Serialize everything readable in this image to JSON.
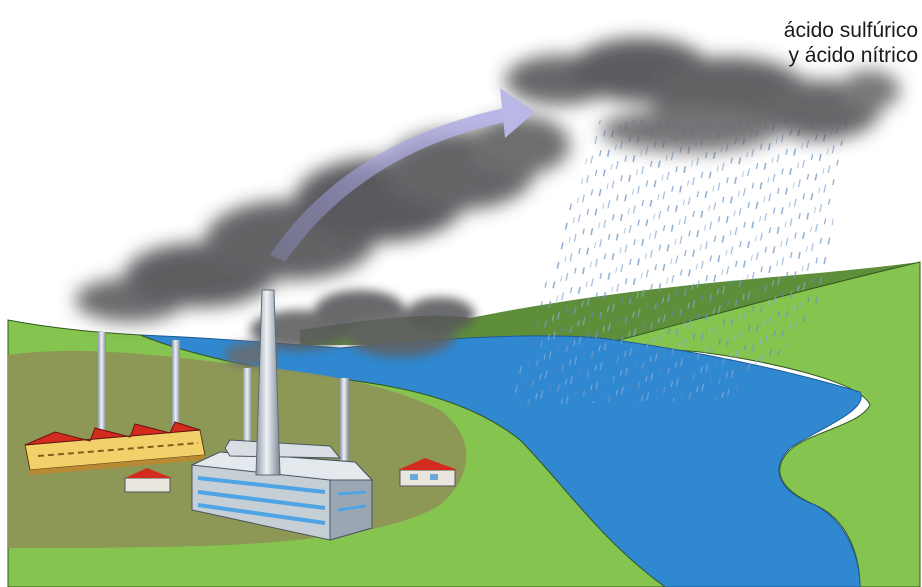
{
  "labels": {
    "line1": "ácido sulfúrico",
    "line2": "y ácido nítrico"
  },
  "colors": {
    "land": "#86c450",
    "land_dark": "#8e9656",
    "water": "#2f88d0",
    "hills": "#5e8e3a",
    "smoke": "#5a5a5c",
    "arrow": "#a9a6da",
    "factory_roof": "#d32b1e"
  },
  "icons": [
    "smoke-cloud-icon",
    "rain-cloud-icon",
    "factory-icon",
    "chimney-icon",
    "house-icon",
    "arrow-icon"
  ]
}
